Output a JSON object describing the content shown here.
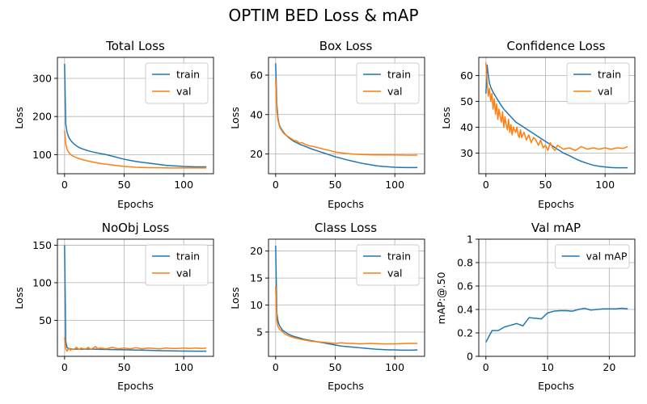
{
  "figure": {
    "title": "OPTIM BED Loss & mAP"
  },
  "colors": {
    "train": "#1f77b4",
    "val": "#ff7f0e"
  },
  "chart_data": [
    {
      "type": "line",
      "title": "Total Loss",
      "xlabel": "Epochs",
      "ylabel": "Loss",
      "xlim": [
        -6,
        125
      ],
      "ylim": [
        50,
        355
      ],
      "xticks": [
        0,
        50,
        100
      ],
      "yticks": [
        100,
        200,
        300
      ],
      "grid": true,
      "legend": "top-right",
      "series": [
        {
          "name": "train",
          "color": "#1f77b4",
          "x": [
            0,
            1,
            2,
            3,
            4,
            5,
            6,
            8,
            10,
            12,
            15,
            20,
            25,
            30,
            35,
            40,
            45,
            50,
            55,
            60,
            65,
            70,
            75,
            80,
            85,
            90,
            95,
            100,
            105,
            110,
            115,
            119
          ],
          "y": [
            338,
            180,
            160,
            150,
            143,
            138,
            134,
            128,
            123,
            119,
            115,
            110,
            106,
            103,
            100,
            96,
            92,
            88,
            85,
            82,
            80,
            78,
            76,
            74,
            72,
            71,
            70,
            69,
            68.5,
            68,
            68,
            68
          ]
        },
        {
          "name": "val",
          "color": "#ff7f0e",
          "x": [
            0,
            1,
            2,
            3,
            4,
            5,
            6,
            8,
            10,
            12,
            15,
            20,
            25,
            30,
            35,
            40,
            45,
            50,
            55,
            60,
            65,
            70,
            80,
            90,
            100,
            110,
            119
          ],
          "y": [
            163,
            128,
            115,
            108,
            104,
            101,
            98,
            95,
            92,
            90,
            87,
            83,
            80,
            77,
            75,
            73,
            71,
            69,
            68,
            67,
            66.5,
            66,
            65.5,
            65,
            65,
            65,
            65
          ]
        }
      ]
    },
    {
      "type": "line",
      "title": "Box Loss",
      "xlabel": "Epochs",
      "ylabel": "Loss",
      "xlim": [
        -6,
        125
      ],
      "ylim": [
        10,
        69
      ],
      "xticks": [
        0,
        50,
        100
      ],
      "yticks": [
        20,
        40,
        60
      ],
      "grid": true,
      "legend": "top-right",
      "series": [
        {
          "name": "train",
          "color": "#1f77b4",
          "x": [
            0,
            1,
            2,
            3,
            4,
            5,
            6,
            8,
            10,
            12,
            15,
            20,
            25,
            30,
            35,
            40,
            45,
            50,
            55,
            60,
            65,
            70,
            75,
            80,
            85,
            90,
            95,
            100,
            105,
            110,
            115,
            119
          ],
          "y": [
            66,
            45,
            38,
            35,
            33.5,
            32.5,
            31.5,
            30,
            28.8,
            27.8,
            26.5,
            25,
            23.8,
            22.6,
            21.6,
            20.6,
            19.6,
            18.6,
            17.8,
            17,
            16.3,
            15.6,
            15,
            14.5,
            14,
            13.7,
            13.5,
            13.3,
            13.2,
            13.1,
            13.1,
            13.1
          ]
        },
        {
          "name": "val",
          "color": "#ff7f0e",
          "x": [
            0,
            1,
            2,
            3,
            4,
            5,
            6,
            8,
            10,
            12,
            15,
            18,
            20,
            22,
            25,
            28,
            30,
            35,
            40,
            45,
            50,
            55,
            60,
            70,
            80,
            90,
            100,
            110,
            119
          ],
          "y": [
            58,
            42,
            37,
            34.5,
            33,
            32,
            31,
            29.8,
            29,
            28.2,
            27,
            26.5,
            25.5,
            25.8,
            24.8,
            24.2,
            24,
            23.3,
            22.5,
            21.8,
            21,
            20.6,
            20.2,
            19.8,
            19.6,
            19.5,
            19.5,
            19.4,
            19.4
          ]
        }
      ]
    },
    {
      "type": "line",
      "title": "Confidence Loss",
      "xlabel": "Epochs",
      "ylabel": "Loss",
      "xlim": [
        -6,
        125
      ],
      "ylim": [
        22,
        67
      ],
      "xticks": [
        0,
        50,
        100
      ],
      "yticks": [
        30,
        40,
        50,
        60
      ],
      "grid": true,
      "legend": "top-right",
      "series": [
        {
          "name": "train",
          "color": "#1f77b4",
          "x": [
            0,
            1,
            2,
            3,
            4,
            5,
            6,
            8,
            10,
            12,
            15,
            20,
            25,
            30,
            35,
            40,
            45,
            50,
            55,
            60,
            65,
            70,
            75,
            80,
            85,
            90,
            95,
            100,
            105,
            110,
            115,
            119
          ],
          "y": [
            53,
            64,
            60,
            57,
            55.5,
            54.5,
            53.5,
            52,
            50.5,
            49,
            47,
            44.5,
            42,
            40.5,
            39,
            37.5,
            36,
            34.5,
            33,
            31.5,
            30,
            29,
            27.8,
            26.8,
            26,
            25.3,
            24.9,
            24.6,
            24.4,
            24.3,
            24.3,
            24.3
          ]
        },
        {
          "name": "val",
          "color": "#ff7f0e",
          "x": [
            0,
            1,
            2,
            3,
            4,
            5,
            6,
            7,
            8,
            9,
            10,
            11,
            12,
            13,
            14,
            15,
            16,
            17,
            18,
            19,
            20,
            21,
            22,
            23,
            24,
            25,
            26,
            27,
            28,
            29,
            30,
            32,
            34,
            36,
            38,
            40,
            42,
            44,
            46,
            48,
            50,
            52,
            54,
            56,
            58,
            60,
            65,
            70,
            75,
            80,
            85,
            90,
            95,
            100,
            105,
            110,
            115,
            119
          ],
          "y": [
            65,
            58,
            52,
            55,
            50,
            53,
            47,
            51,
            45,
            49,
            43,
            47,
            44,
            42,
            46,
            40,
            44,
            41,
            39,
            43,
            38,
            41,
            37,
            40,
            39,
            38,
            40,
            37,
            36,
            39,
            36,
            38,
            35,
            37,
            34,
            36,
            35,
            33,
            35,
            32,
            33,
            31,
            34,
            32,
            31,
            33,
            31.5,
            32,
            31,
            32.5,
            31.5,
            32,
            31.5,
            32,
            31.5,
            32,
            31.8,
            32.5
          ]
        }
      ]
    },
    {
      "type": "line",
      "title": "NoObj Loss",
      "xlabel": "Epochs",
      "ylabel": "Loss",
      "xlim": [
        -6,
        125
      ],
      "ylim": [
        2,
        158
      ],
      "xticks": [
        0,
        50,
        100
      ],
      "yticks": [
        50,
        100,
        150
      ],
      "grid": true,
      "legend": "top-right",
      "series": [
        {
          "name": "train",
          "color": "#1f77b4",
          "x": [
            0,
            1,
            2,
            3,
            4,
            5,
            6,
            8,
            10,
            15,
            20,
            25,
            30,
            40,
            50,
            60,
            70,
            80,
            90,
            100,
            110,
            119
          ],
          "y": [
            150,
            22,
            14,
            12.5,
            12,
            11.8,
            11.5,
            11.5,
            11.5,
            11.5,
            11.5,
            11.5,
            11.3,
            11,
            10.7,
            10.4,
            10,
            9.6,
            9.3,
            9,
            8.8,
            8.8
          ]
        },
        {
          "name": "val",
          "color": "#ff7f0e",
          "x": [
            0,
            1,
            2,
            3,
            4,
            5,
            6,
            8,
            10,
            12,
            14,
            16,
            18,
            20,
            22,
            24,
            26,
            28,
            30,
            35,
            40,
            45,
            50,
            55,
            60,
            65,
            70,
            75,
            80,
            85,
            90,
            95,
            100,
            105,
            110,
            115,
            119
          ],
          "y": [
            27,
            12,
            9,
            11,
            13,
            10,
            12,
            11,
            14,
            11,
            13,
            12,
            12,
            14,
            11,
            13,
            15,
            12,
            13,
            12,
            14,
            12,
            13,
            12,
            13.5,
            12,
            13,
            12.5,
            12,
            13,
            12.5,
            12.5,
            13,
            12.5,
            13,
            12.5,
            13
          ]
        }
      ]
    },
    {
      "type": "line",
      "title": "Class Loss",
      "xlabel": "Epochs",
      "ylabel": "Loss",
      "xlim": [
        -6,
        125
      ],
      "ylim": [
        0.5,
        22.2
      ],
      "xticks": [
        0,
        50,
        100
      ],
      "yticks": [
        5,
        10,
        15,
        20
      ],
      "grid": true,
      "legend": "top-right",
      "series": [
        {
          "name": "train",
          "color": "#1f77b4",
          "x": [
            0,
            1,
            2,
            3,
            4,
            5,
            6,
            8,
            10,
            12,
            15,
            20,
            25,
            30,
            35,
            40,
            45,
            50,
            55,
            60,
            65,
            70,
            75,
            80,
            85,
            90,
            95,
            100,
            105,
            110,
            115,
            119
          ],
          "y": [
            21,
            8.5,
            7,
            6.3,
            5.9,
            5.6,
            5.3,
            5,
            4.7,
            4.5,
            4.2,
            3.9,
            3.6,
            3.4,
            3.2,
            3,
            2.8,
            2.6,
            2.4,
            2.3,
            2.2,
            2.1,
            2,
            1.9,
            1.8,
            1.75,
            1.7,
            1.7,
            1.65,
            1.65,
            1.65,
            1.7
          ]
        },
        {
          "name": "val",
          "color": "#ff7f0e",
          "x": [
            0,
            1,
            2,
            3,
            4,
            5,
            6,
            8,
            10,
            12,
            15,
            20,
            25,
            30,
            35,
            40,
            45,
            50,
            55,
            60,
            65,
            70,
            80,
            90,
            100,
            110,
            119
          ],
          "y": [
            13.5,
            7,
            6,
            5.6,
            5.4,
            5.2,
            5,
            4.6,
            4.4,
            4.2,
            4,
            3.7,
            3.5,
            3.3,
            3.2,
            3.1,
            3,
            2.9,
            3,
            2.9,
            2.9,
            2.8,
            2.9,
            2.8,
            2.8,
            2.9,
            2.9
          ]
        }
      ]
    },
    {
      "type": "line",
      "title": "Val mAP",
      "xlabel": "Epochs",
      "ylabel": "mAP:@.50",
      "xlim": [
        -1.15,
        24.15
      ],
      "ylim": [
        0.0,
        1.0
      ],
      "xticks": [
        0,
        10,
        20
      ],
      "yticks": [
        0.0,
        0.2,
        0.4,
        0.6,
        0.8,
        1.0
      ],
      "grid": true,
      "legend": "top-right",
      "series": [
        {
          "name": "val mAP",
          "color": "#1f77b4",
          "x": [
            0,
            1,
            2,
            3,
            4,
            5,
            6,
            7,
            8,
            9,
            10,
            11,
            12,
            13,
            14,
            15,
            16,
            17,
            18,
            19,
            20,
            21,
            22,
            23
          ],
          "y": [
            0.12,
            0.22,
            0.22,
            0.25,
            0.265,
            0.28,
            0.26,
            0.33,
            0.325,
            0.32,
            0.37,
            0.385,
            0.39,
            0.39,
            0.385,
            0.4,
            0.41,
            0.395,
            0.4,
            0.405,
            0.405,
            0.405,
            0.41,
            0.405
          ]
        }
      ]
    }
  ]
}
